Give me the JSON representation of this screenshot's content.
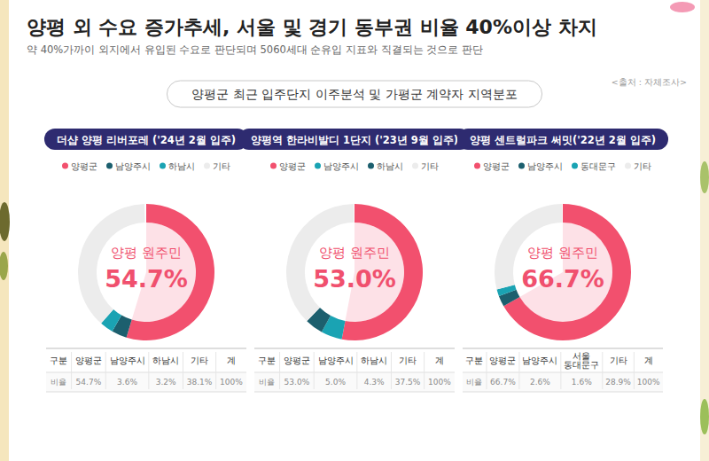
{
  "header": {
    "title": "양평 외 수요 증가추세, 서울 및 경기 동부권 비율 40%이상 차지",
    "subtitle": "약 40%가까이 외지에서 유입된 수요로 판단되며 5060세대 순유입 지표와 직결되는 것으로 판단",
    "source": "<출처 : 자체조사>",
    "section": "양평군 최근 입주단지 이주분석 및 가평군 계약자 지역분포"
  },
  "table": {
    "header": "구분",
    "total_header": "계",
    "row_label": "비율"
  },
  "chart_data": [
    {
      "type": "pie",
      "title": "더샵 양평 리버포레 ('24년 2월 입주)",
      "categories": [
        "양평군",
        "남양주시",
        "하남시",
        "기타"
      ],
      "table_categories": [
        "양평군",
        "남양주시",
        "하남시",
        "기타"
      ],
      "values": [
        54.7,
        3.6,
        3.2,
        38.1
      ],
      "value_labels": [
        "54.7%",
        "3.6%",
        "3.2%",
        "38.1%"
      ],
      "colors": [
        "#f2506e",
        "#1c5f6e",
        "#1aa3b3",
        "#ececec"
      ],
      "center_label": "양평 원주민",
      "total": 100,
      "total_label": "100%",
      "legend": "top"
    },
    {
      "type": "pie",
      "title": "양평역 한라비발디 1단지 ('23년 9월 입주)",
      "categories": [
        "양평군",
        "남양주시",
        "하남시",
        "기타"
      ],
      "table_categories": [
        "양평군",
        "남양주시",
        "하남시",
        "기타"
      ],
      "values": [
        53.0,
        5.0,
        4.3,
        37.5
      ],
      "value_labels": [
        "53.0%",
        "5.0%",
        "4.3%",
        "37.5%"
      ],
      "colors": [
        "#f2506e",
        "#1aa3b3",
        "#1c5f6e",
        "#ececec"
      ],
      "center_label": "양평 원주민",
      "total": 100,
      "total_label": "100%",
      "legend": "top"
    },
    {
      "type": "pie",
      "title": "양평 센트럴파크 써밋('22년 2월 입주)",
      "categories": [
        "양평군",
        "남양주시",
        "동대문구",
        "기타"
      ],
      "table_categories": [
        "양평군",
        "남양주시",
        "서울 동대문구",
        "기타"
      ],
      "values": [
        66.7,
        2.6,
        1.6,
        28.9
      ],
      "value_labels": [
        "66.7%",
        "2.6%",
        "1.6%",
        "28.9%"
      ],
      "colors": [
        "#f2506e",
        "#1c5f6e",
        "#1aa3b3",
        "#ececec"
      ],
      "center_label": "양평 원주민",
      "total": 100,
      "total_label": "100%",
      "legend": "top"
    }
  ]
}
